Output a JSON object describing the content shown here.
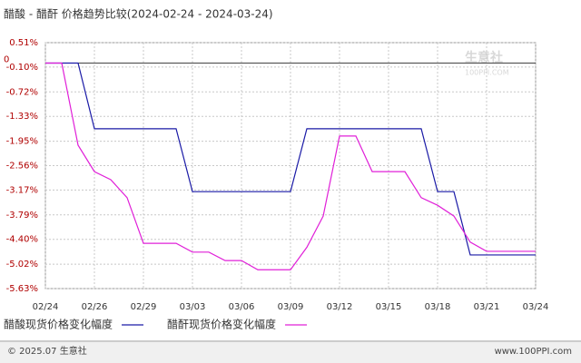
{
  "chart_data": {
    "type": "line",
    "title": "醋酸 - 醋酐 价格趋势比较(2024-02-24 - 2024-03-24)",
    "categories": [
      "02/24",
      null,
      null,
      "02/26",
      null,
      null,
      "02/29",
      null,
      null,
      "03/03",
      null,
      null,
      "03/06",
      null,
      null,
      "03/09",
      null,
      null,
      "03/12",
      null,
      null,
      "03/15",
      null,
      null,
      "03/18",
      null,
      null,
      "03/21",
      null,
      null,
      "03/24"
    ],
    "series": [
      {
        "name": "醋酸现货价格变化幅度",
        "color": "#1a1aa6",
        "values": [
          0,
          0,
          0,
          -1.64,
          -1.64,
          -1.64,
          -1.64,
          -1.64,
          -1.64,
          -3.21,
          -3.21,
          -3.21,
          -3.21,
          -3.21,
          -3.21,
          -3.21,
          -1.64,
          -1.64,
          -1.64,
          -1.64,
          -1.64,
          -1.64,
          -1.64,
          -1.64,
          -3.21,
          -3.21,
          -4.79,
          -4.79,
          -4.79,
          -4.79,
          -4.79
        ]
      },
      {
        "name": "醋酐现货价格变化幅度",
        "color": "#e020d8",
        "values": [
          0,
          0,
          -2.05,
          -2.71,
          -2.91,
          -3.36,
          -4.5,
          -4.5,
          -4.5,
          -4.72,
          -4.72,
          -4.93,
          -4.93,
          -5.16,
          -5.16,
          -5.16,
          -4.6,
          -3.82,
          -1.82,
          -1.82,
          -2.71,
          -2.71,
          -2.71,
          -3.36,
          -3.55,
          -3.82,
          -4.47,
          -4.7,
          -4.7,
          -4.7,
          -4.7
        ]
      }
    ],
    "ylim": [
      -5.63,
      0.51
    ],
    "yticks": [
      {
        "value": 0.51,
        "label": "0.51%"
      },
      {
        "value": -0.1,
        "label": "-0.10%"
      },
      {
        "value": -0.72,
        "label": "-0.72%"
      },
      {
        "value": -1.33,
        "label": "-1.33%"
      },
      {
        "value": -1.95,
        "label": "-1.95%"
      },
      {
        "value": -2.56,
        "label": "-2.56%"
      },
      {
        "value": -3.17,
        "label": "-3.17%"
      },
      {
        "value": -3.79,
        "label": "-3.79%"
      },
      {
        "value": -4.4,
        "label": "-4.40%"
      },
      {
        "value": -5.02,
        "label": "-5.02%"
      },
      {
        "value": -5.63,
        "label": "-5.63%"
      }
    ],
    "zero_line": {
      "value": 0,
      "label": "0"
    },
    "grid": true,
    "watermark": {
      "name": "生意社",
      "site": "100PPI.COM"
    },
    "footer": {
      "copyright": "© 2025.07 生意社",
      "site": "www.100PPI.com"
    }
  }
}
